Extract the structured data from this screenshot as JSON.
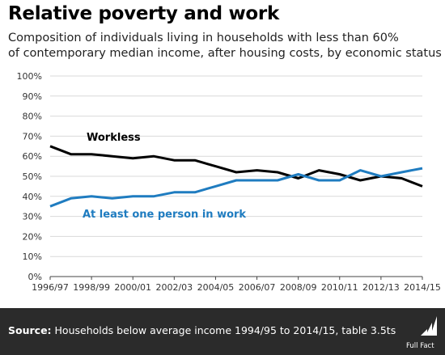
{
  "header": {
    "title": "Relative poverty and work",
    "subtitle_line1": "Composition of individuals living in households with less than 60%",
    "subtitle_line2": "of contemporary median income, after housing costs, by economic status"
  },
  "footer": {
    "source_label": "Source:",
    "source_text": " Households below average income 1994/95 to 2014/15, table 3.5ts",
    "logo_text": "Full Fact"
  },
  "colors": {
    "workless": "#000000",
    "in_work": "#1f7cc0",
    "grid": "#d9d9d9",
    "footer_bg": "#2b2b2b"
  },
  "chart_data": {
    "type": "line",
    "x": [
      "1996/97",
      "1997/98",
      "1998/99",
      "1999/00",
      "2000/01",
      "2001/02",
      "2002/03",
      "2003/04",
      "2004/05",
      "2005/06",
      "2006/07",
      "2007/08",
      "2008/09",
      "2009/10",
      "2010/11",
      "2011/12",
      "2012/13",
      "2013/14",
      "2014/15"
    ],
    "x_tick_labels": [
      "1996/97",
      "1998/99",
      "2000/01",
      "2002/03",
      "2004/05",
      "2006/07",
      "2008/09",
      "2010/11",
      "2012/13",
      "2014/15"
    ],
    "y_tick_labels": [
      "0%",
      "10%",
      "20%",
      "30%",
      "40%",
      "50%",
      "60%",
      "70%",
      "80%",
      "90%",
      "100%"
    ],
    "ylim": [
      0,
      100
    ],
    "grid": true,
    "series": [
      {
        "name": "Workless",
        "color": "#000000",
        "values": [
          65,
          61,
          61,
          60,
          59,
          60,
          58,
          58,
          55,
          52,
          53,
          52,
          49,
          53,
          51,
          48,
          50,
          49,
          45
        ]
      },
      {
        "name": "At least one person in work",
        "color": "#1f7cc0",
        "values": [
          35,
          39,
          40,
          39,
          40,
          40,
          42,
          42,
          45,
          48,
          48,
          48,
          51,
          48,
          48,
          53,
          50,
          52,
          54
        ]
      }
    ]
  }
}
